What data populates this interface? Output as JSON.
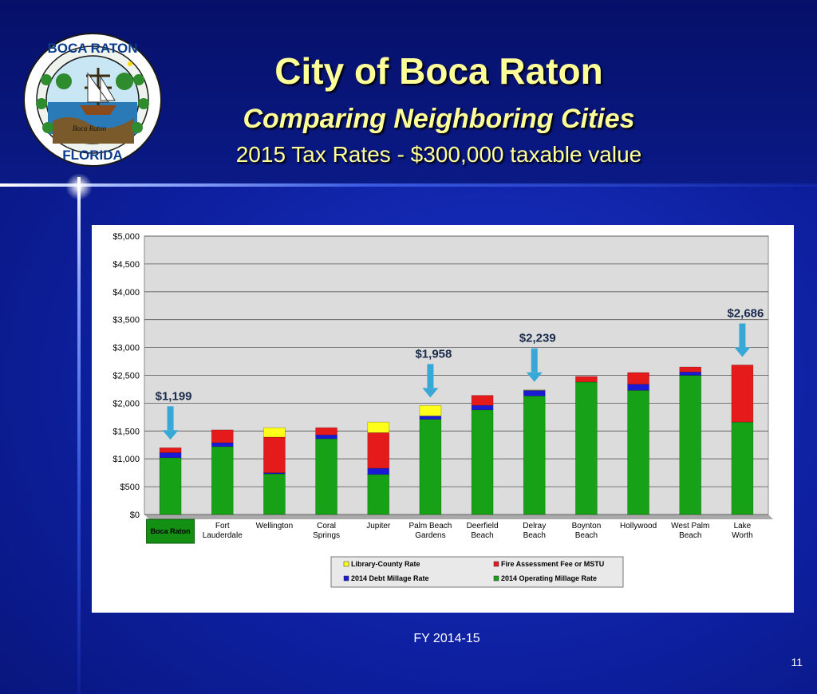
{
  "slide": {
    "title": "City of Boca Raton",
    "subtitle": "Comparing Neighboring Cities",
    "subtitle2": "2015 Tax Rates - $300,000 taxable value",
    "footer": "FY 2014-15",
    "page_number": "11",
    "logo": {
      "top_text": "BOCA RATON",
      "bottom_text": "FLORIDA",
      "center_text": "Boca Raton"
    }
  },
  "colors": {
    "operating": "#16a116",
    "debt": "#1a1ad6",
    "fire": "#e51a1a",
    "library": "#ffff1a"
  },
  "chart_data": {
    "type": "bar",
    "stacked": true,
    "categories": [
      "Boca Raton",
      "Fort Lauderdale",
      "Wellington",
      "Coral Springs",
      "Jupiter",
      "Palm Beach Gardens",
      "Deerfield Beach",
      "Delray Beach",
      "Boynton Beach",
      "Hollywood",
      "West Palm Beach",
      "Lake Worth"
    ],
    "series": [
      {
        "name": "2014 Operating Millage Rate",
        "values": [
          1020,
          1220,
          730,
          1360,
          720,
          1710,
          1880,
          2130,
          2380,
          2230,
          2500,
          1660
        ]
      },
      {
        "name": "2014 Debt Millage Rate",
        "values": [
          90,
          70,
          20,
          70,
          110,
          60,
          80,
          100,
          0,
          110,
          60,
          0
        ]
      },
      {
        "name": "Fire Assessment Fee or MSTU",
        "values": [
          89,
          230,
          640,
          130,
          640,
          0,
          180,
          0,
          100,
          210,
          90,
          1026
        ]
      },
      {
        "name": "Library-County Rate",
        "values": [
          0,
          0,
          170,
          0,
          190,
          188,
          0,
          9,
          0,
          0,
          0,
          0
        ]
      }
    ],
    "y_ticks": [
      "$0",
      "$500",
      "$1,000",
      "$1,500",
      "$2,000",
      "$2,500",
      "$3,000",
      "$3,500",
      "$4,000",
      "$4,500",
      "$5,000"
    ],
    "ylim": [
      0,
      5000
    ],
    "callouts": [
      {
        "category": "Boca Raton",
        "label": "$1,199"
      },
      {
        "category": "Palm Beach Gardens",
        "label": "$1,958"
      },
      {
        "category": "Delray Beach",
        "label": "$2,239"
      },
      {
        "category": "Lake Worth",
        "label": "$2,686"
      }
    ],
    "highlighted_category": "Boca Raton",
    "legend": {
      "position": "bottom",
      "items": [
        "Library-County Rate",
        "Fire Assessment Fee or MSTU",
        "2014 Debt Millage Rate",
        "2014 Operating Millage Rate"
      ]
    },
    "grid": true
  }
}
